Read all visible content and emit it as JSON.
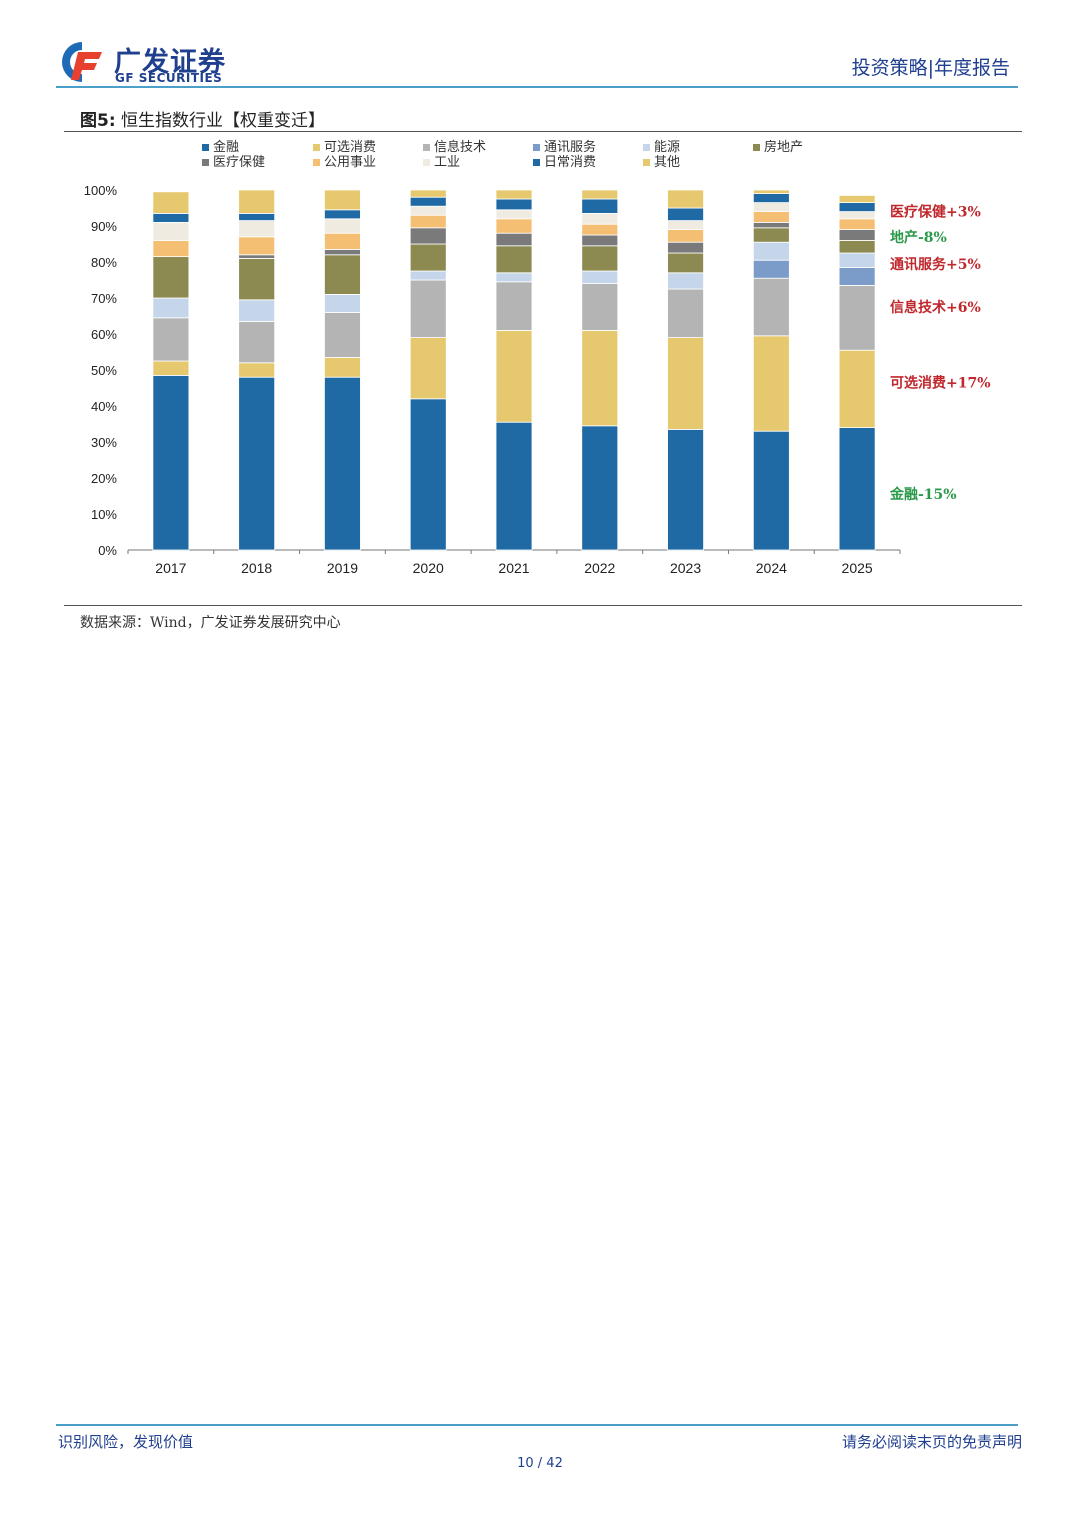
{
  "header": {
    "logo_cn": "广发证券",
    "logo_en": "GF SECURITIES",
    "right_text": "投资策略|年度报告"
  },
  "figure": {
    "label": "图5:",
    "title": "恒生指数行业【权重变迁】",
    "source": "数据来源：Wind，广发证券发展研究中心"
  },
  "footer": {
    "left": "识别风险，发现价值",
    "right": "请务必阅读末页的免责声明",
    "page": "10 / 42"
  },
  "colors": {
    "brand": "#1f3f8f",
    "accent_line": "#4aa0c8",
    "up": "#c0282d",
    "down": "#2a9a4a"
  },
  "chart_data": {
    "type": "bar",
    "stacked": true,
    "title": "恒生指数行业【权重变迁】",
    "xlabel": "",
    "ylabel": "",
    "ylim": [
      0,
      100
    ],
    "yticks": [
      "0%",
      "10%",
      "20%",
      "30%",
      "40%",
      "50%",
      "60%",
      "70%",
      "80%",
      "90%",
      "100%"
    ],
    "categories": [
      "2017",
      "2018",
      "2019",
      "2020",
      "2021",
      "2022",
      "2023",
      "2024",
      "2025"
    ],
    "legend_position": "top",
    "series": [
      {
        "name": "金融",
        "color": "#1f6aa5",
        "values": [
          48.5,
          48,
          48,
          42,
          35.5,
          34.5,
          33.5,
          33,
          34
        ]
      },
      {
        "name": "可选消费",
        "color": "#e6c86e",
        "values": [
          4,
          4,
          5.5,
          17,
          25.5,
          26.5,
          25.5,
          26.5,
          21.5
        ]
      },
      {
        "name": "信息技术",
        "color": "#b4b4b4",
        "values": [
          12,
          11.5,
          12.5,
          16,
          13.5,
          13,
          13.5,
          16,
          18
        ]
      },
      {
        "name": "通讯服务",
        "color": "#7b9cc8",
        "values": [
          0,
          0,
          0,
          0,
          0,
          0,
          0,
          5,
          5
        ]
      },
      {
        "name": "能源",
        "color": "#c5d6ea",
        "values": [
          5.5,
          6,
          5,
          2.5,
          2.5,
          3.5,
          4.5,
          5,
          4
        ]
      },
      {
        "name": "房地产",
        "color": "#8c8a50",
        "values": [
          11.5,
          11.5,
          11,
          7.5,
          7.5,
          7,
          5.5,
          4,
          3.5
        ]
      },
      {
        "name": "医疗保健",
        "color": "#7a7a7a",
        "values": [
          0,
          1,
          1.5,
          4.5,
          3.5,
          3,
          3,
          1.5,
          3
        ]
      },
      {
        "name": "公用事业",
        "color": "#f5bf73",
        "values": [
          4.5,
          5,
          4.5,
          3.5,
          4,
          3,
          3.5,
          3,
          3
        ]
      },
      {
        "name": "工业",
        "color": "#f0ebe0",
        "values": [
          5,
          4.5,
          4,
          2.5,
          2.5,
          3,
          2.5,
          2.5,
          2
        ]
      },
      {
        "name": "日常消费",
        "color": "#1f6aa5",
        "values": [
          2.5,
          2,
          2.5,
          2.5,
          3,
          4,
          3.5,
          2.5,
          2.5
        ]
      },
      {
        "name": "其他",
        "color": "#e6c86e",
        "values": [
          6,
          6.5,
          5.5,
          2,
          2.5,
          2.5,
          5,
          1,
          2
        ]
      }
    ],
    "legend_order": [
      "金融",
      "可选消费",
      "信息技术",
      "通讯服务",
      "能源",
      "房地产",
      "医疗保健",
      "公用事业",
      "工业",
      "日常消费",
      "其他"
    ],
    "annotations": [
      {
        "text": "医疗保健+3%",
        "y": 94,
        "color": "up"
      },
      {
        "text": "地产-8%",
        "y": 87,
        "color": "down"
      },
      {
        "text": "通讯服务+5%",
        "y": 79.5,
        "color": "up"
      },
      {
        "text": "信息技术+6%",
        "y": 67.5,
        "color": "up"
      },
      {
        "text": "可选消费+17%",
        "y": 46.5,
        "color": "up"
      },
      {
        "text": "金融-15%",
        "y": 15.5,
        "color": "down"
      }
    ]
  }
}
